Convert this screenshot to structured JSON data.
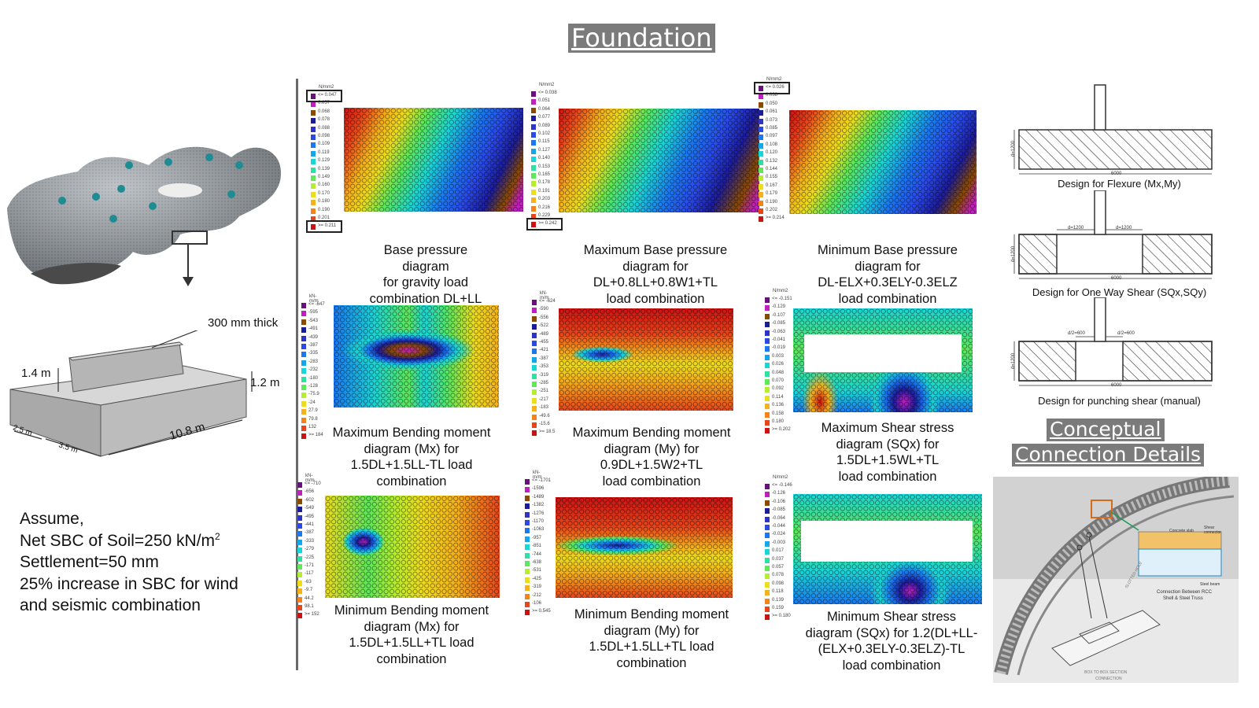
{
  "title": "Foundation",
  "conceptual_title_line1": "Conceptual",
  "conceptual_title_line2": "Connection Details",
  "left": {
    "wall_label": "300 mm thick",
    "dim_1_4": "1.4 m",
    "dim_1_2": "1.2 m",
    "dim_2_5": "2.5 m",
    "dim_3_5": "3.5 m",
    "dim_10_8": "10.8 m",
    "assume": "Assume,",
    "sbc_prefix": "Net SBC of Soil=250 kN/m",
    "sbc_sup": "2",
    "settlement": "Settlement=50 mm",
    "increase_1": "25% increase in SBC for wind",
    "increase_2": "and seismic combination"
  },
  "diagrams": [
    {
      "caption": "Base pressure diagram\nfor gravity load\ncombination DL+LL",
      "unit": "N/mm2",
      "legend": [
        "<= 0.047",
        "0.057",
        "0.068",
        "0.078",
        "0.088",
        "0.098",
        "0.109",
        "0.119",
        "0.129",
        "0.139",
        "0.149",
        "0.160",
        "0.170",
        "0.180",
        "0.190",
        "0.201",
        ">= 0.211"
      ]
    },
    {
      "caption": "Maximum Base pressure\ndiagram for\nDL+0.8LL+0.8W1+TL\nload combination",
      "unit": "N/mm2",
      "legend": [
        "<= 0.038",
        "0.051",
        "0.064",
        "0.077",
        "0.089",
        "0.102",
        "0.115",
        "0.127",
        "0.140",
        "0.153",
        "0.165",
        "0.178",
        "0.191",
        "0.203",
        "0.216",
        "0.229",
        ">= 0.242"
      ]
    },
    {
      "caption": "Minimum Base pressure\ndiagram for\nDL-ELX+0.3ELY-0.3ELZ\nload combination",
      "unit": "N/mm2",
      "legend": [
        "<= 0.026",
        "0.038",
        "0.050",
        "0.061",
        "0.073",
        "0.085",
        "0.097",
        "0.108",
        "0.120",
        "0.132",
        "0.144",
        "0.155",
        "0.167",
        "0.179",
        "0.190",
        "0.202",
        ">= 0.214"
      ]
    },
    {
      "caption": "Maximum Bending moment\ndiagram (Mx) for\n1.5DL+1.5LL-TL load\ncombination",
      "unit": "kN-m/m",
      "legend": [
        "<= -647",
        "-595",
        "-543",
        "-491",
        "-439",
        "-387",
        "-335",
        "-283",
        "-232",
        "-180",
        "-128",
        "-75.9",
        "-24",
        "27.9",
        "79.8",
        "132",
        ">= 184"
      ]
    },
    {
      "caption": "Maximum Bending moment\ndiagram (My) for\n0.9DL+1.5W2+TL\nload combination",
      "unit": "kN-m/m",
      "legend": [
        "<= -624",
        "-590",
        "-556",
        "-522",
        "-489",
        "-455",
        "-421",
        "-387",
        "-353",
        "-319",
        "-285",
        "-251",
        "-217",
        "-183",
        "-49.6",
        "-15.6",
        ">= 18.5"
      ]
    },
    {
      "caption": "Maximum Shear stress\ndiagram (SQx) for\n1.5DL+1.5WL+TL\nload combination",
      "unit": "N/mm2",
      "legend": [
        "<= -0.151",
        "-0.129",
        "-0.107",
        "-0.085",
        "-0.063",
        "-0.041",
        "-0.019",
        "0.003",
        "0.026",
        "0.048",
        "0.070",
        "0.092",
        "0.114",
        "0.136",
        "0.158",
        "0.180",
        ">= 0.202"
      ]
    },
    {
      "caption": "Minimum Bending moment\ndiagram (Mx) for\n1.5DL+1.5LL+TL load\ncombination",
      "unit": "kN-m/m",
      "legend": [
        "<= -710",
        "-656",
        "-602",
        "-549",
        "-495",
        "-441",
        "-387",
        "-333",
        "-279",
        "-225",
        "-171",
        "-117",
        "-63",
        "-9.7",
        "44.2",
        "98.1",
        ">= 152"
      ]
    },
    {
      "caption": "Minimum Bending moment\ndiagram (My) for\n1.5DL+1.5LL+TL load\ncombination",
      "unit": "kN-m/m",
      "legend": [
        "<= -1701",
        "-1596",
        "-1489",
        "-1382",
        "-1276",
        "-1170",
        "-1063",
        "-957",
        "-851",
        "-744",
        "-638",
        "-531",
        "-425",
        "-319",
        "-212",
        "-106",
        ">= 0.545"
      ]
    },
    {
      "caption": "Minimum Shear stress\ndiagram (SQx) for 1.2(DL+LL-\n(ELX+0.3ELY-0.3ELZ)-TL\nload combination",
      "unit": "N/mm2",
      "legend": [
        "<= -0.146",
        "-0.126",
        "-0.106",
        "-0.085",
        "-0.064",
        "-0.044",
        "-0.024",
        "-0.003",
        "0.017",
        "0.037",
        "0.057",
        "0.078",
        "0.098",
        "0.118",
        "0.139",
        "0.159",
        ">= 0.180"
      ]
    }
  ],
  "sections": [
    {
      "caption": "Design for Flexure (Mx,My)",
      "dim_bottom": "6000",
      "dim_side": "d=1200"
    },
    {
      "caption": "Design for One Way Shear (SQx,SQy)",
      "dim_bottom": "6000",
      "dim_side": "d=1200",
      "dim_left": "d=1200",
      "dim_right": "d=1200"
    },
    {
      "caption": "Design for punching shear (manual)",
      "dim_bottom": "6000",
      "dim_side": "d=1200",
      "dim_left": "d/2=600",
      "dim_right": "d/2=600"
    }
  ],
  "connection": {
    "concrete_slab": "Concrete slab",
    "shear_connector": "Shear connector",
    "steel_beam": "Steel beam",
    "conn_caption_1": "Connection Between RCC",
    "conn_caption_2": "Shell & Steel Truss",
    "sketch_label_1": "SLOTTED HOLE",
    "sketch_label_2": "BOX TO BOX SECTION",
    "sketch_label_3": "CONNECTION"
  },
  "colors": {
    "title_bg": "#7b7b7b",
    "divider": "#6a6a6a",
    "legend_scale": [
      "#6b0f80",
      "#c21fc2",
      "#8a4a00",
      "#1c1c9a",
      "#2d35c8",
      "#2a4ae8",
      "#1a78f0",
      "#13a6ea",
      "#19d6d6",
      "#2fe0a3",
      "#5ee85a",
      "#b6ee2d",
      "#eedd1c",
      "#f5b21a",
      "#f3841a",
      "#e8461a",
      "#cc1212"
    ]
  }
}
